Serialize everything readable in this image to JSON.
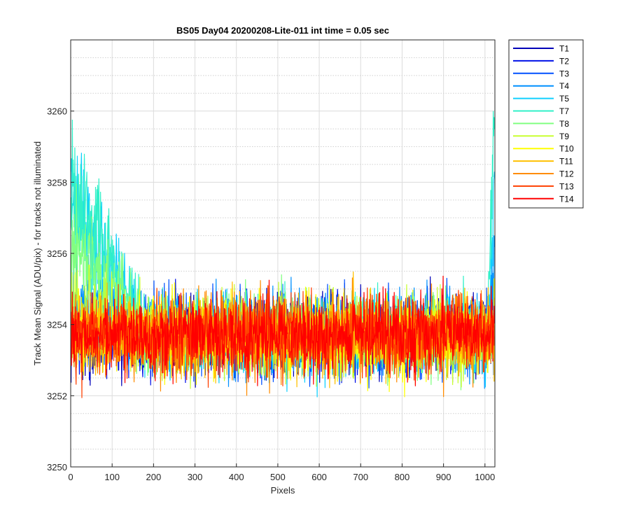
{
  "chart_data": {
    "type": "line",
    "title": "BS05 Day04 20200208-Lite-011 int time = 0.05 sec",
    "xlabel": "Pixels",
    "ylabel": "Track Mean Signal (ADU/pix) - for tracks not illuminated",
    "xlim": [
      0,
      1024
    ],
    "ylim": [
      3250,
      3262
    ],
    "xticks": [
      0,
      100,
      200,
      300,
      400,
      500,
      600,
      700,
      800,
      900,
      1000
    ],
    "yticks": [
      3250,
      3252,
      3254,
      3256,
      3258,
      3260
    ],
    "grid": true,
    "legend_position": "outside-top-right",
    "noise_mean": 3253.7,
    "series": [
      {
        "name": "T1",
        "color": "#0000b8",
        "early_offset": 0.0,
        "late_offset": 0.0
      },
      {
        "name": "T2",
        "color": "#0010e8",
        "early_offset": 0.0,
        "late_offset": 0.0
      },
      {
        "name": "T3",
        "color": "#0050ff",
        "early_offset": 0.3,
        "late_offset": 0.0
      },
      {
        "name": "T4",
        "color": "#0090ff",
        "early_offset": 1.2,
        "late_offset": 2.0
      },
      {
        "name": "T5",
        "color": "#10d0ff",
        "early_offset": 4.0,
        "late_offset": 4.5
      },
      {
        "name": "T7",
        "color": "#30f0c8",
        "early_offset": 4.5,
        "late_offset": 7.0
      },
      {
        "name": "T8",
        "color": "#80ff80",
        "early_offset": 3.0,
        "late_offset": 0.5
      },
      {
        "name": "T9",
        "color": "#c8ff30",
        "early_offset": 1.0,
        "late_offset": 0.0
      },
      {
        "name": "T10",
        "color": "#ffff00",
        "early_offset": 0.0,
        "late_offset": 0.0
      },
      {
        "name": "T11",
        "color": "#ffc000",
        "early_offset": 0.0,
        "late_offset": 0.0
      },
      {
        "name": "T12",
        "color": "#ff8c00",
        "early_offset": 0.0,
        "late_offset": 0.0
      },
      {
        "name": "T13",
        "color": "#ff4000",
        "early_offset": 0.0,
        "late_offset": 0.0
      },
      {
        "name": "T14",
        "color": "#ff0000",
        "early_offset": 0.0,
        "late_offset": 0.0
      }
    ]
  }
}
